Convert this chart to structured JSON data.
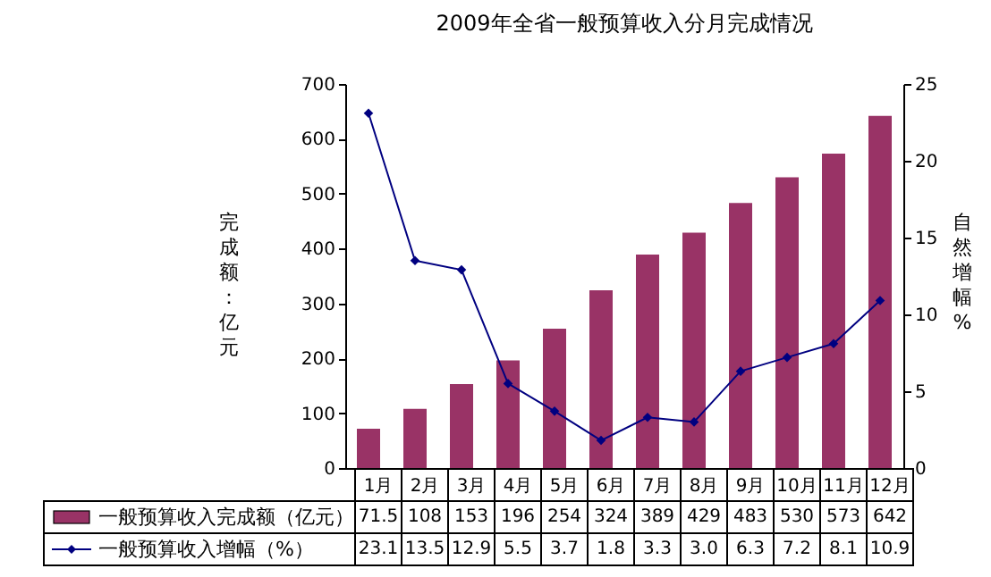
{
  "chart_data": {
    "type": "bar",
    "title": "2009年全省一般预算收入分月完成情况",
    "ylabel": "完成额：亿元",
    "y2label": "自然增幅%",
    "categories": [
      "1月",
      "2月",
      "3月",
      "4月",
      "5月",
      "6月",
      "7月",
      "8月",
      "9月",
      "10月",
      "11月",
      "12月"
    ],
    "series": [
      {
        "name": "一般预算收入完成额（亿元）",
        "color": "#993366",
        "values": [
          71.5,
          108,
          153,
          196,
          254,
          324,
          389,
          429,
          483,
          530,
          573,
          642
        ],
        "value_labels": [
          "71.5",
          "108",
          "153",
          "196",
          "254",
          "324",
          "389",
          "429",
          "483",
          "530",
          "573",
          "642"
        ]
      },
      {
        "name": "一般预算收入增幅（%）",
        "type": "line",
        "axis": "y2",
        "color": "#000080",
        "values": [
          23.1,
          13.5,
          12.9,
          5.5,
          3.7,
          1.8,
          3.3,
          3.0,
          6.3,
          7.2,
          8.1,
          10.9
        ],
        "value_labels": [
          "23.1",
          "13.5",
          "12.9",
          "5.5",
          "3.7",
          "1.8",
          "3.3",
          "3.0",
          "6.3",
          "7.2",
          "8.1",
          "10.9"
        ]
      }
    ],
    "ylim": [
      0,
      700
    ],
    "yticks": [
      0,
      100,
      200,
      300,
      400,
      500,
      600,
      700
    ],
    "y2lim": [
      0,
      25
    ],
    "y2ticks": [
      0,
      5,
      10,
      15,
      20,
      25
    ],
    "marker": "diamond",
    "legend": "bottom"
  }
}
